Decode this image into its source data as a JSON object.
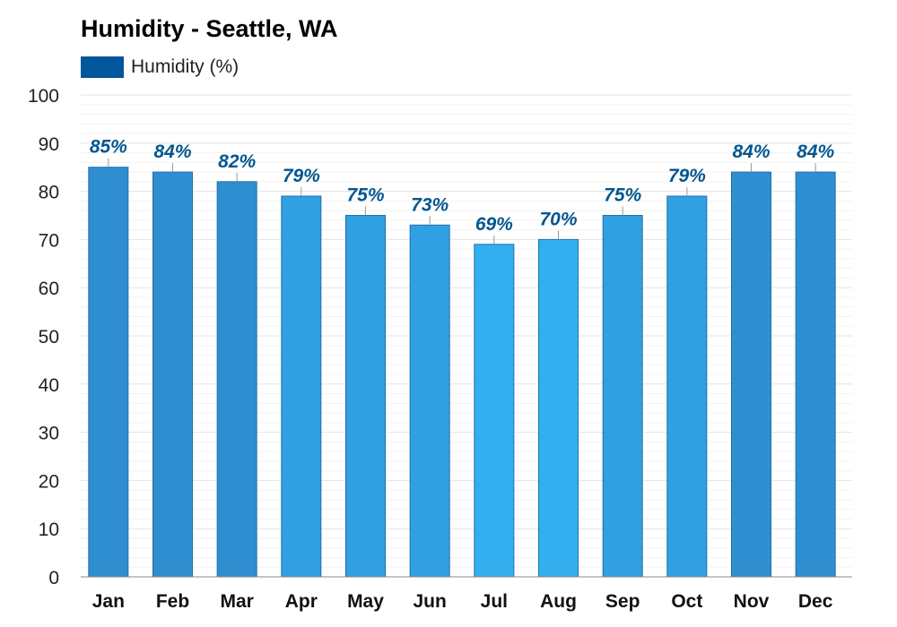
{
  "colors": {
    "legend": "#02569b",
    "label": "#02568f",
    "grid": "#e4e4e4",
    "minor_grid": "#f3f3f3",
    "axis": "#888888",
    "bar_dark": "#2f8ed0",
    "bar_light": "#33aff0",
    "bar_stroke": "#1f6fa8"
  },
  "chart_data": {
    "type": "bar",
    "title": "Humidity - Seattle, WA",
    "categories": [
      "Jan",
      "Feb",
      "Mar",
      "Apr",
      "May",
      "Jun",
      "Jul",
      "Aug",
      "Sep",
      "Oct",
      "Nov",
      "Dec"
    ],
    "series": [
      {
        "name": "Humidity (%)",
        "values": [
          85,
          84,
          82,
          79,
          75,
          73,
          69,
          70,
          75,
          79,
          84,
          84
        ],
        "data_labels": [
          "85%",
          "84%",
          "82%",
          "79%",
          "75%",
          "73%",
          "69%",
          "70%",
          "75%",
          "79%",
          "84%",
          "84%"
        ]
      }
    ],
    "yticks": [
      "0",
      "10",
      "20",
      "30",
      "40",
      "50",
      "60",
      "70",
      "80",
      "90",
      "100"
    ],
    "ylim": [
      0,
      100
    ],
    "xlabel": "",
    "ylabel": "",
    "grid": true,
    "legend_position": "top-left"
  }
}
